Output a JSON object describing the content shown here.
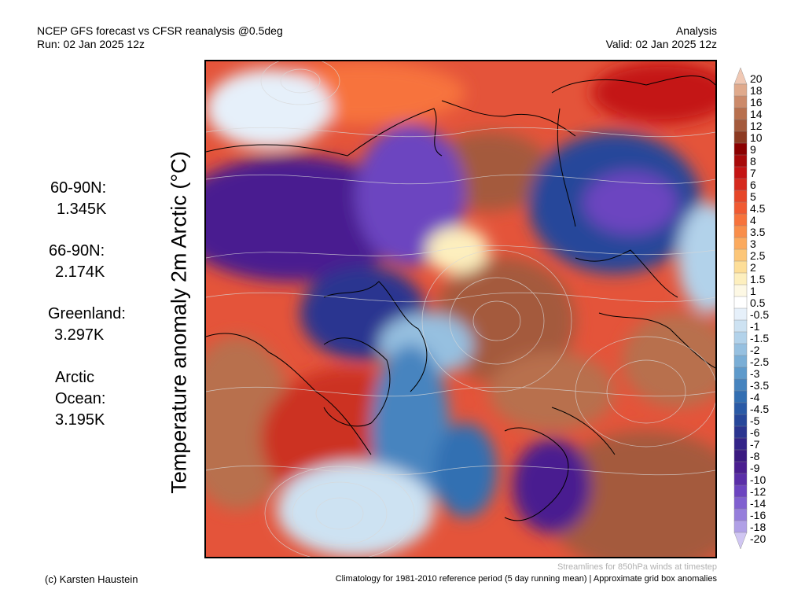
{
  "header": {
    "title": "NCEP GFS forecast vs CFSR reanalysis @0.5deg",
    "run": "Run: 02 Jan 2025 12z",
    "mode": "Analysis",
    "valid": "Valid: 02 Jan 2025 12z"
  },
  "map": {
    "variable_label": "Temperature anomaly 2m Arctic (°C)",
    "streamline_note": "Streamlines for 850hPa winds at timestep"
  },
  "stats": [
    {
      "label": "60-90N:",
      "value": "1.345K"
    },
    {
      "label": "66-90N:",
      "value": "2.174K"
    },
    {
      "label": "Greenland:",
      "value": "3.297K"
    },
    {
      "label": "Arctic",
      "label2": "Ocean:",
      "value": "3.195K"
    }
  ],
  "colorbar": {
    "labels": [
      "20",
      "18",
      "16",
      "14",
      "12",
      "10",
      "9",
      "8",
      "7",
      "6",
      "5",
      "4.5",
      "4",
      "3.5",
      "3",
      "2.5",
      "2",
      "1.5",
      "1",
      "0.5",
      "-0.5",
      "-1",
      "-1.5",
      "-2",
      "-2.5",
      "-3",
      "-3.5",
      "-4",
      "-4.5",
      "-5",
      "-6",
      "-7",
      "-8",
      "-9",
      "-10",
      "-12",
      "-14",
      "-16",
      "-18",
      "-20"
    ],
    "colors": [
      "#f0c8b4",
      "#e0aa8c",
      "#cc8a6a",
      "#b8704e",
      "#a45a3c",
      "#8c3a22",
      "#8b0000",
      "#a80a0a",
      "#c41414",
      "#d62a1e",
      "#e64628",
      "#f05a32",
      "#f7733c",
      "#f98e4a",
      "#fbaa5e",
      "#fcc678",
      "#fdde98",
      "#fdefbe",
      "#fdf8e4",
      "#ffffff",
      "#e6f0fa",
      "#cde2f2",
      "#b2d2ea",
      "#96c0e0",
      "#7aaed6",
      "#5e9acb",
      "#4684bf",
      "#336fb2",
      "#2a5aa6",
      "#27479a",
      "#2b3590",
      "#332488",
      "#3a1a80",
      "#4a1e90",
      "#5a2ea8",
      "#6c44c0",
      "#8060d0",
      "#967edc",
      "#b0a0e6",
      "#d0c6f2"
    ]
  },
  "footer": {
    "credit": "(c) Karsten Haustein",
    "note": "Climatology for 1981-2010 reference period (5 day running mean) | Approximate grid box anomalies"
  }
}
